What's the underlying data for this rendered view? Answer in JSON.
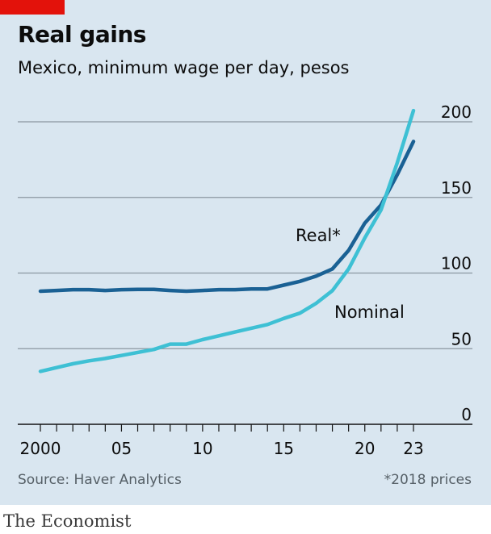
{
  "header": {
    "title": "Real gains",
    "subtitle": "Mexico, minimum wage per day, pesos"
  },
  "footer": {
    "source": "Source: Haver Analytics",
    "note": "*2018 prices",
    "brand": "The Economist"
  },
  "colors": {
    "background": "#d9e6f0",
    "accent_tag": "#e3120b",
    "real": "#1a6194",
    "nominal": "#3ec0d4",
    "grid": "#8a97a1",
    "axis": "#121212"
  },
  "chart_data": {
    "type": "line",
    "title": "Real gains",
    "subtitle": "Mexico, minimum wage per day, pesos",
    "xlabel": "",
    "ylabel": "",
    "xlim": [
      2000,
      2023
    ],
    "ylim": [
      0,
      200
    ],
    "grid": true,
    "y_axis_side": "right",
    "xticks": [
      {
        "value": 2000,
        "label": "2000"
      },
      {
        "value": 2005,
        "label": "05"
      },
      {
        "value": 2010,
        "label": "10"
      },
      {
        "value": 2015,
        "label": "15"
      },
      {
        "value": 2020,
        "label": "20"
      },
      {
        "value": 2023,
        "label": "23"
      }
    ],
    "yticks": [
      {
        "value": 0,
        "label": "0"
      },
      {
        "value": 50,
        "label": "50"
      },
      {
        "value": 100,
        "label": "100"
      },
      {
        "value": 150,
        "label": "150"
      },
      {
        "value": 200,
        "label": "200"
      }
    ],
    "series": [
      {
        "name": "Real*",
        "color": "#1a6194",
        "points": [
          [
            2000,
            88
          ],
          [
            2001,
            88.5
          ],
          [
            2002,
            89
          ],
          [
            2003,
            89
          ],
          [
            2004,
            88.5
          ],
          [
            2005,
            89
          ],
          [
            2006,
            89.2
          ],
          [
            2007,
            89.2
          ],
          [
            2008,
            88.5
          ],
          [
            2009,
            88
          ],
          [
            2010,
            88.5
          ],
          [
            2011,
            89
          ],
          [
            2012,
            89
          ],
          [
            2013,
            89.5
          ],
          [
            2014,
            89.5
          ],
          [
            2015,
            92
          ],
          [
            2016,
            94.5
          ],
          [
            2017,
            98
          ],
          [
            2018,
            102.7
          ],
          [
            2019,
            115
          ],
          [
            2020,
            133
          ],
          [
            2021,
            145
          ],
          [
            2022,
            165
          ],
          [
            2023,
            187
          ]
        ]
      },
      {
        "name": "Nominal",
        "color": "#3ec0d4",
        "points": [
          [
            2000,
            35
          ],
          [
            2001,
            37.5
          ],
          [
            2002,
            40
          ],
          [
            2003,
            42
          ],
          [
            2004,
            43.5
          ],
          [
            2005,
            45.5
          ],
          [
            2006,
            47.5
          ],
          [
            2007,
            49.5
          ],
          [
            2008,
            53
          ],
          [
            2009,
            53
          ],
          [
            2010,
            56
          ],
          [
            2011,
            58.5
          ],
          [
            2012,
            61
          ],
          [
            2013,
            63.5
          ],
          [
            2014,
            66
          ],
          [
            2015,
            70
          ],
          [
            2016,
            73.5
          ],
          [
            2017,
            80
          ],
          [
            2018,
            88.4
          ],
          [
            2019,
            102.7
          ],
          [
            2020,
            123.2
          ],
          [
            2021,
            141.7
          ],
          [
            2022,
            172.9
          ],
          [
            2023,
            207.4
          ]
        ]
      }
    ],
    "labels": [
      {
        "series": "Real*",
        "text": "Real*"
      },
      {
        "series": "Nominal",
        "text": "Nominal"
      }
    ]
  }
}
